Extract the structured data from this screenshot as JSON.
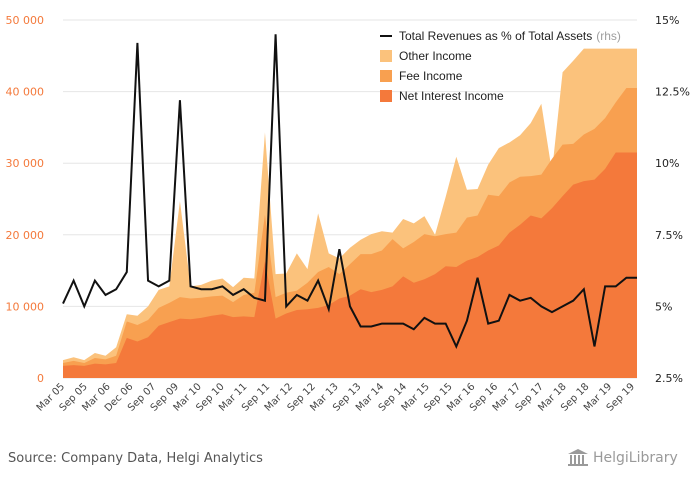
{
  "chart_data": {
    "type": "area",
    "x": [
      "Mar 05",
      "Jun 05",
      "Sep 05",
      "Dec 05",
      "Mar 06",
      "Jun 06",
      "Sep 06",
      "Dec 06",
      "Mar 07",
      "Jun 07",
      "Sep 07",
      "Dec 07",
      "Mar 09",
      "Jun 09",
      "Sep 09",
      "Dec 09",
      "Mar 10",
      "Jun 10",
      "Sep 10",
      "Dec 10",
      "Mar 11",
      "Jun 11",
      "Sep 11",
      "Dec 11",
      "Mar 12",
      "Jun 12",
      "Sep 12",
      "Dec 12",
      "Mar 13",
      "Jun 13",
      "Sep 13",
      "Dec 13",
      "Mar 14",
      "Jun 14",
      "Sep 14",
      "Dec 14",
      "Mar 15",
      "Jun 15",
      "Sep 15",
      "Dec 15",
      "Mar 16",
      "Jun 16",
      "Sep 16",
      "Dec 16",
      "Mar 17",
      "Jun 17",
      "Sep 17",
      "Dec 17",
      "Mar 18",
      "Jun 18",
      "Sep 18",
      "Dec 18",
      "Mar 19",
      "Jun 19",
      "Sep 19"
    ],
    "x_tick_labels": [
      "Mar 05",
      "Sep 05",
      "Mar 06",
      "Dec 06",
      "Sep 07",
      "Sep 09",
      "Mar 10",
      "Sep 10",
      "Mar 11",
      "Sep 11",
      "Mar 12",
      "Sep 12",
      "Mar 13",
      "Sep 13",
      "Mar 14",
      "Sep 14",
      "Mar 15",
      "Sep 15",
      "Mar 16",
      "Sep 16",
      "Mar 17",
      "Sep 17",
      "Mar 18",
      "Sep 18",
      "Mar 19",
      "Sep 19"
    ],
    "series": [
      {
        "name": "Net Interest Income",
        "axis": "left",
        "color": "#f4793b",
        "values": [
          1700,
          1800,
          1700,
          2000,
          1900,
          2100,
          5600,
          5100,
          5700,
          7300,
          7800,
          8300,
          8200,
          8400,
          8700,
          8900,
          8500,
          8600,
          8500,
          16300,
          8300,
          9000,
          9500,
          9600,
          9800,
          10200,
          11100,
          11500,
          12400,
          12000,
          12300,
          12800,
          14200,
          13300,
          13800,
          14500,
          15600,
          15500,
          16400,
          16900,
          17800,
          18500,
          20300,
          21400,
          22700,
          22300,
          23700,
          25400,
          27000,
          27500,
          27700,
          29200,
          31500,
          31500,
          31500
        ]
      },
      {
        "name": "Fee Income",
        "axis": "left",
        "color": "#f8a050",
        "values": [
          2100,
          2400,
          2100,
          2800,
          2600,
          3100,
          7900,
          7400,
          8100,
          9800,
          10500,
          11300,
          11100,
          11200,
          11400,
          11500,
          10600,
          11600,
          11900,
          22800,
          11300,
          11900,
          12200,
          13300,
          14800,
          15500,
          14500,
          15900,
          17300,
          17300,
          17800,
          19400,
          18100,
          19000,
          20100,
          19800,
          20100,
          20300,
          22400,
          22700,
          25600,
          25400,
          27300,
          28100,
          28200,
          28400,
          30600,
          32600,
          32700,
          34000,
          34800,
          36300,
          38500,
          40500,
          40500
        ]
      },
      {
        "name": "Other Income",
        "axis": "left",
        "color": "#fbc27c",
        "values": [
          2500,
          2900,
          2500,
          3500,
          3100,
          4300,
          8900,
          8700,
          10000,
          12300,
          12800,
          24700,
          12800,
          13000,
          13600,
          13900,
          12700,
          14000,
          13900,
          34300,
          14500,
          14600,
          17400,
          15200,
          23000,
          17400,
          16700,
          18200,
          19300,
          20100,
          20500,
          20300,
          22200,
          21600,
          22600,
          20000,
          25300,
          30900,
          26300,
          26400,
          29800,
          32100,
          32900,
          33900,
          35600,
          38300,
          28800,
          42700,
          44300,
          46000,
          46000,
          46000,
          46000,
          46000,
          46000
        ]
      },
      {
        "name": "Total Revenues as % of Total Assets",
        "axis": "right",
        "color": "#111111",
        "values": [
          5.1,
          5.9,
          5.0,
          5.9,
          5.4,
          5.6,
          6.2,
          14.2,
          5.9,
          5.7,
          5.9,
          12.2,
          5.7,
          5.6,
          5.6,
          5.7,
          5.4,
          5.6,
          5.3,
          5.2,
          14.5,
          5.0,
          5.4,
          5.2,
          5.9,
          4.9,
          7.0,
          5.0,
          4.3,
          4.3,
          4.4,
          4.4,
          4.4,
          4.2,
          4.6,
          4.4,
          4.4,
          3.6,
          4.5,
          6.0,
          4.4,
          4.5,
          5.4,
          5.2,
          5.3,
          5.0,
          4.8,
          5.0,
          5.2,
          5.6,
          3.6,
          5.7,
          5.7,
          6.0,
          6.0
        ]
      }
    ],
    "left_axis": {
      "ylim": [
        0,
        50000
      ],
      "ticks": [
        "0",
        "10 000",
        "20 000",
        "30 000",
        "40 000",
        "50 000"
      ]
    },
    "right_axis": {
      "ylim": [
        2.5,
        15
      ],
      "ticks": [
        "2.5%",
        "5%",
        "7.5%",
        "10%",
        "12.5%",
        "15%"
      ]
    },
    "grid": true,
    "legend_position": "top-right",
    "legend": [
      {
        "label": "Total Revenues as % of Total Assets",
        "suffix": "(rhs)",
        "kind": "line",
        "color": "#111111"
      },
      {
        "label": "Other Income",
        "suffix": "",
        "kind": "area",
        "color": "#fbc27c"
      },
      {
        "label": "Fee Income",
        "suffix": "",
        "kind": "area",
        "color": "#f8a050"
      },
      {
        "label": "Net Interest Income",
        "suffix": "",
        "kind": "area",
        "color": "#f4793b"
      }
    ],
    "left_tick_color": "#f4793b",
    "right_tick_color": "#222222"
  },
  "footer": {
    "source": "Source: Company Data, Helgi Analytics",
    "logo_text": "HelgiLibrary"
  }
}
